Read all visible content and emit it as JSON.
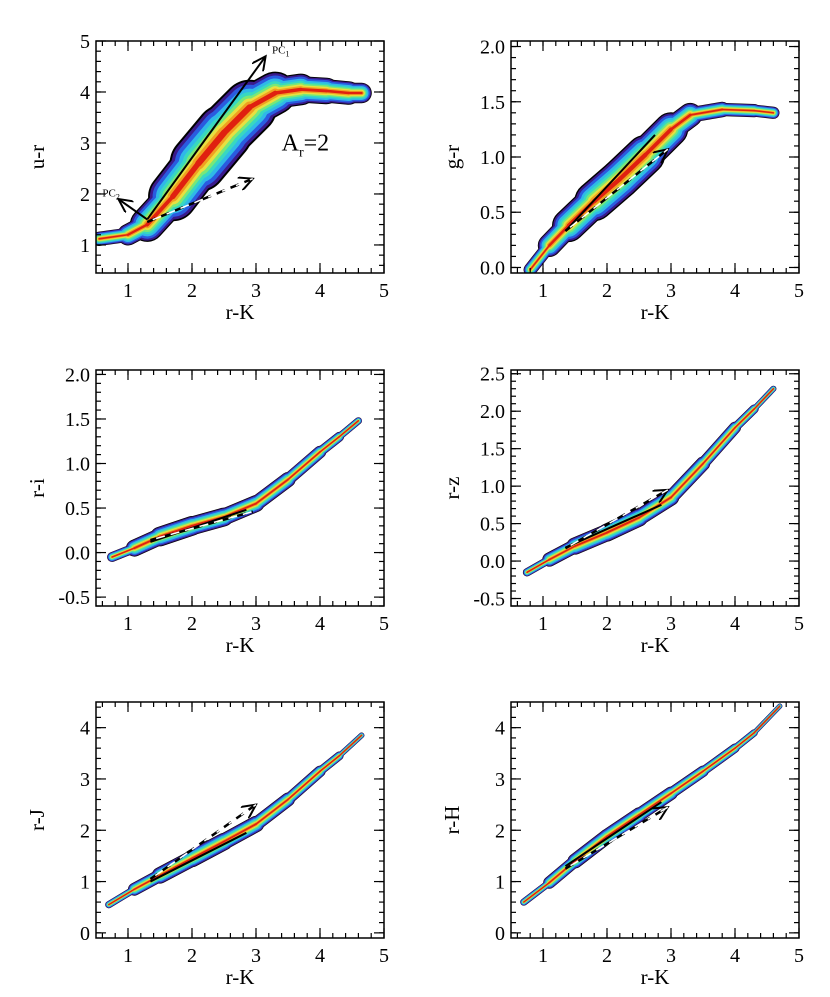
{
  "chart_data": [
    {
      "type": "contour",
      "id": "ur",
      "xlabel": "r-K",
      "ylabel": "u-r",
      "xlim": [
        0.5,
        5.0
      ],
      "ylim": [
        0.45,
        5.0
      ],
      "xticks": [
        1,
        2,
        3,
        4,
        5
      ],
      "xtick_labels": [
        "1",
        "2",
        "3",
        "4",
        "5"
      ],
      "yticks": [
        1,
        2,
        3,
        4,
        5
      ],
      "ytick_labels": [
        "1",
        "2",
        "3",
        "4",
        "5"
      ],
      "ridge": [
        [
          0.55,
          1.12
        ],
        [
          1.0,
          1.2
        ],
        [
          1.3,
          1.4
        ],
        [
          1.7,
          1.95
        ],
        [
          2.1,
          2.6
        ],
        [
          2.5,
          3.2
        ],
        [
          2.9,
          3.7
        ],
        [
          3.3,
          3.98
        ],
        [
          3.7,
          4.05
        ],
        [
          4.1,
          4.02
        ],
        [
          4.45,
          3.98
        ],
        [
          4.65,
          3.98
        ]
      ],
      "widths": [
        0.12,
        0.16,
        0.26,
        0.42,
        0.55,
        0.58,
        0.5,
        0.34,
        0.28,
        0.24,
        0.22,
        0.18
      ],
      "lines": [
        {
          "style": "solid",
          "points": [
            [
              1.3,
              1.5
            ],
            [
              3.15,
              4.7
            ]
          ],
          "arrow": true
        },
        {
          "style": "solid",
          "points": [
            [
              1.3,
              1.5
            ],
            [
              0.85,
              1.9
            ]
          ],
          "arrow": true
        },
        {
          "style": "dashed",
          "points": [
            [
              1.3,
              1.45
            ],
            [
              2.95,
              2.3
            ]
          ],
          "arrow": true
        }
      ],
      "annotations": [
        {
          "text": "PC",
          "sub": "1",
          "x": 3.25,
          "y": 4.75
        },
        {
          "text": "PC",
          "sub": "2",
          "x": 0.6,
          "y": 1.95
        },
        {
          "text": "A",
          "sub": "r",
          "suffix": "=2",
          "x": 3.4,
          "y": 2.85,
          "size": "large"
        }
      ]
    },
    {
      "type": "contour",
      "id": "gr",
      "xlabel": "r-K",
      "ylabel": "g-r",
      "xlim": [
        0.5,
        5.0
      ],
      "ylim": [
        -0.05,
        2.05
      ],
      "xticks": [
        1,
        2,
        3,
        4,
        5
      ],
      "xtick_labels": [
        "1",
        "2",
        "3",
        "4",
        "5"
      ],
      "yticks": [
        0.0,
        0.5,
        1.0,
        1.5,
        2.0
      ],
      "ytick_labels": [
        "0.0",
        "0.5",
        "1.0",
        "1.5",
        "2.0"
      ],
      "ridge": [
        [
          0.8,
          -0.02
        ],
        [
          1.1,
          0.2
        ],
        [
          1.4,
          0.38
        ],
        [
          1.8,
          0.6
        ],
        [
          2.2,
          0.8
        ],
        [
          2.6,
          1.02
        ],
        [
          3.0,
          1.25
        ],
        [
          3.3,
          1.38
        ],
        [
          3.8,
          1.43
        ],
        [
          4.3,
          1.42
        ],
        [
          4.6,
          1.4
        ]
      ],
      "widths": [
        0.04,
        0.08,
        0.13,
        0.17,
        0.19,
        0.17,
        0.14,
        0.08,
        0.06,
        0.06,
        0.05
      ],
      "lines": [
        {
          "style": "solid",
          "points": [
            [
              1.35,
              0.33
            ],
            [
              2.75,
              1.2
            ]
          ],
          "arrow": false
        },
        {
          "style": "dashed",
          "points": [
            [
              1.35,
              0.33
            ],
            [
              2.95,
              1.07
            ]
          ],
          "arrow": true
        }
      ],
      "annotations": []
    },
    {
      "type": "contour",
      "id": "ri",
      "xlabel": "r-K",
      "ylabel": "r-i",
      "xlim": [
        0.5,
        5.0
      ],
      "ylim": [
        -0.6,
        2.05
      ],
      "xticks": [
        1,
        2,
        3,
        4,
        5
      ],
      "xtick_labels": [
        "1",
        "2",
        "3",
        "4",
        "5"
      ],
      "yticks": [
        -0.5,
        0.0,
        0.5,
        1.0,
        1.5,
        2.0
      ],
      "ytick_labels": [
        "-0.5",
        "0.0",
        "0.5",
        "1.0",
        "1.5",
        "2.0"
      ],
      "ridge": [
        [
          0.75,
          -0.05
        ],
        [
          1.1,
          0.05
        ],
        [
          1.5,
          0.18
        ],
        [
          2.0,
          0.3
        ],
        [
          2.5,
          0.4
        ],
        [
          3.0,
          0.55
        ],
        [
          3.5,
          0.82
        ],
        [
          4.0,
          1.13
        ],
        [
          4.3,
          1.3
        ],
        [
          4.6,
          1.48
        ]
      ],
      "widths": [
        0.03,
        0.08,
        0.11,
        0.11,
        0.1,
        0.09,
        0.08,
        0.06,
        0.05,
        0.03
      ],
      "lines": [
        {
          "style": "solid",
          "points": [
            [
              1.35,
              0.12
            ],
            [
              2.85,
              0.48
            ]
          ],
          "arrow": false
        },
        {
          "style": "dashed",
          "points": [
            [
              1.35,
              0.14
            ],
            [
              2.95,
              0.46
            ]
          ],
          "arrow": false
        }
      ],
      "annotations": []
    },
    {
      "type": "contour",
      "id": "rz",
      "xlabel": "r-K",
      "ylabel": "r-z",
      "xlim": [
        0.5,
        5.0
      ],
      "ylim": [
        -0.6,
        2.55
      ],
      "xticks": [
        1,
        2,
        3,
        4,
        5
      ],
      "xtick_labels": [
        "1",
        "2",
        "3",
        "4",
        "5"
      ],
      "yticks": [
        -0.5,
        0.0,
        0.5,
        1.0,
        1.5,
        2.0,
        2.5
      ],
      "ytick_labels": [
        "-0.5",
        "0.0",
        "0.5",
        "1.0",
        "1.5",
        "2.0",
        "2.5"
      ],
      "ridge": [
        [
          0.75,
          -0.15
        ],
        [
          1.1,
          0.02
        ],
        [
          1.5,
          0.2
        ],
        [
          2.0,
          0.38
        ],
        [
          2.5,
          0.58
        ],
        [
          3.0,
          0.85
        ],
        [
          3.5,
          1.3
        ],
        [
          4.0,
          1.78
        ],
        [
          4.3,
          2.03
        ],
        [
          4.6,
          2.3
        ]
      ],
      "widths": [
        0.03,
        0.08,
        0.11,
        0.12,
        0.12,
        0.1,
        0.09,
        0.07,
        0.05,
        0.03
      ],
      "lines": [
        {
          "style": "solid",
          "points": [
            [
              1.35,
              0.18
            ],
            [
              2.85,
              0.75
            ]
          ],
          "arrow": false
        },
        {
          "style": "dashed",
          "points": [
            [
              1.35,
              0.17
            ],
            [
              2.95,
              0.95
            ]
          ],
          "arrow": true
        }
      ],
      "annotations": []
    },
    {
      "type": "contour",
      "id": "rj",
      "xlabel": "r-K",
      "ylabel": "r-J",
      "xlim": [
        0.5,
        5.0
      ],
      "ylim": [
        -0.1,
        4.5
      ],
      "xticks": [
        1,
        2,
        3,
        4,
        5
      ],
      "xtick_labels": [
        "1",
        "2",
        "3",
        "4",
        "5"
      ],
      "yticks": [
        0,
        1,
        2,
        3,
        4
      ],
      "ytick_labels": [
        "0",
        "1",
        "2",
        "3",
        "4"
      ],
      "ridge": [
        [
          0.7,
          0.55
        ],
        [
          1.1,
          0.85
        ],
        [
          1.5,
          1.12
        ],
        [
          2.0,
          1.45
        ],
        [
          2.5,
          1.78
        ],
        [
          3.0,
          2.12
        ],
        [
          3.5,
          2.6
        ],
        [
          4.0,
          3.15
        ],
        [
          4.3,
          3.45
        ],
        [
          4.65,
          3.85
        ]
      ],
      "widths": [
        0.04,
        0.1,
        0.15,
        0.17,
        0.17,
        0.15,
        0.12,
        0.1,
        0.07,
        0.04
      ],
      "lines": [
        {
          "style": "solid",
          "points": [
            [
              1.35,
              1.0
            ],
            [
              2.85,
              1.95
            ]
          ],
          "arrow": false
        },
        {
          "style": "dashed",
          "points": [
            [
              1.35,
              1.05
            ],
            [
              3.0,
              2.5
            ]
          ],
          "arrow": true
        }
      ],
      "annotations": []
    },
    {
      "type": "contour",
      "id": "rh",
      "xlabel": "r-K",
      "ylabel": "r-H",
      "xlim": [
        0.5,
        5.0
      ],
      "ylim": [
        -0.1,
        4.5
      ],
      "xticks": [
        1,
        2,
        3,
        4,
        5
      ],
      "xtick_labels": [
        "1",
        "2",
        "3",
        "4",
        "5"
      ],
      "yticks": [
        0,
        1,
        2,
        3,
        4
      ],
      "ytick_labels": [
        "0",
        "1",
        "2",
        "3",
        "4"
      ],
      "ridge": [
        [
          0.7,
          0.6
        ],
        [
          1.1,
          0.98
        ],
        [
          1.5,
          1.4
        ],
        [
          2.0,
          1.88
        ],
        [
          2.5,
          2.3
        ],
        [
          3.0,
          2.72
        ],
        [
          3.5,
          3.15
        ],
        [
          4.0,
          3.6
        ],
        [
          4.3,
          3.9
        ],
        [
          4.7,
          4.42
        ]
      ],
      "widths": [
        0.04,
        0.1,
        0.14,
        0.15,
        0.14,
        0.12,
        0.1,
        0.08,
        0.06,
        0.04
      ],
      "lines": [
        {
          "style": "solid",
          "points": [
            [
              1.35,
              1.3
            ],
            [
              2.85,
              2.55
            ]
          ],
          "arrow": false
        },
        {
          "style": "dashed",
          "points": [
            [
              1.35,
              1.25
            ],
            [
              2.95,
              2.45
            ]
          ],
          "arrow": true
        }
      ],
      "annotations": []
    }
  ],
  "colors": {
    "levels": [
      "#000000",
      "#3a1a8c",
      "#2a5be0",
      "#2fb8e8",
      "#38d8c0",
      "#78e878",
      "#e8e040",
      "#f0a020",
      "#e02010"
    ],
    "axis": "#000000",
    "dashed_line": "#ffffff"
  }
}
